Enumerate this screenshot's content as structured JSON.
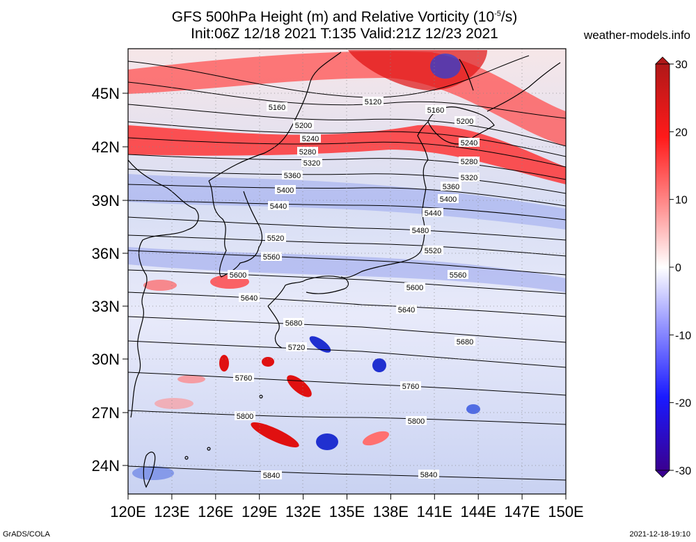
{
  "title": {
    "line1_pre": "GFS 500hPa Height (m) and Relative Vorticity (10",
    "line1_sup": "-5",
    "line1_post": "/s)",
    "line2": "Init:06Z 12/18 2021 T:135 Valid:21Z 12/23 2021"
  },
  "site": "weather-models.info",
  "footer": {
    "left": "GrADS/COLA",
    "right": "2021-12-18-19:10"
  },
  "map": {
    "lon_labels": [
      "120E",
      "123E",
      "126E",
      "129E",
      "132E",
      "135E",
      "138E",
      "141E",
      "144E",
      "147E",
      "150E"
    ],
    "lat_labels": [
      "45N",
      "42N",
      "39N",
      "36N",
      "33N",
      "30N",
      "27N",
      "24N"
    ],
    "contours": [
      {
        "label": "5120",
        "level": 5120
      },
      {
        "label": "5160",
        "level": 5160
      },
      {
        "label": "5200",
        "level": 5200
      },
      {
        "label": "5240",
        "level": 5240
      },
      {
        "label": "5280",
        "level": 5280
      },
      {
        "label": "5320",
        "level": 5320
      },
      {
        "label": "5360",
        "level": 5360
      },
      {
        "label": "5400",
        "level": 5400
      },
      {
        "label": "5440",
        "level": 5440
      },
      {
        "label": "5480",
        "level": 5480
      },
      {
        "label": "5520",
        "level": 5520
      },
      {
        "label": "5560",
        "level": 5560
      },
      {
        "label": "5600",
        "level": 5600
      },
      {
        "label": "5640",
        "level": 5640
      },
      {
        "label": "5680",
        "level": 5680
      },
      {
        "label": "5720",
        "level": 5720
      },
      {
        "label": "5760",
        "level": 5760
      },
      {
        "label": "5800",
        "level": 5800
      },
      {
        "label": "5840",
        "level": 5840
      }
    ]
  },
  "colorbar": {
    "labels": [
      "30",
      "20",
      "10",
      "0",
      "-10",
      "-20",
      "-30"
    ],
    "colors": {
      "max": "#b01818",
      "pos": "#ff1a1a",
      "zero": "#ffffff",
      "neg": "#1a1aff",
      "min": "#3a0090"
    }
  }
}
